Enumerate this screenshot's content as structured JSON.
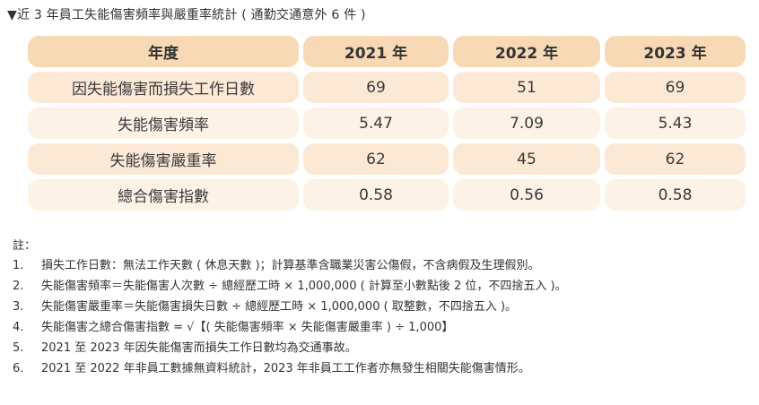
{
  "caption": "▼近 3 年員工失能傷害頻率與嚴重率統計 ( 通勤交通意外 6 件 )",
  "table": {
    "headers": [
      "年度",
      "2021 年",
      "2022 年",
      "2023 年"
    ],
    "rows": [
      [
        "因失能傷害而損失工作日數",
        "69",
        "51",
        "69"
      ],
      [
        "失能傷害頻率",
        "5.47",
        "7.09",
        "5.43"
      ],
      [
        "失能傷害嚴重率",
        "62",
        "45",
        "62"
      ],
      [
        "總合傷害指數",
        "0.58",
        "0.56",
        "0.58"
      ]
    ]
  },
  "notes": {
    "title": "註：",
    "items": [
      {
        "num": "1.",
        "text": "損失工作日數：無法工作天數 ( 休息天數 )；計算基準含職業災害公傷假，不含病假及生理假別。"
      },
      {
        "num": "2.",
        "text": "失能傷害頻率＝失能傷害人次數 ÷ 總經歷工時 × 1,000,000 ( 計算至小數點後 2 位，不四捨五入 )。"
      },
      {
        "num": "3.",
        "text": "失能傷害嚴重率＝失能傷害損失日數 ÷ 總經歷工時 × 1,000,000 ( 取整數，不四捨五入 )。"
      },
      {
        "num": "4.",
        "text": "失能傷害之總合傷害指數 = √【( 失能傷害頻率 × 失能傷害嚴重率 ) ÷ 1,000】"
      },
      {
        "num": "5.",
        "text": "2021 至 2023 年因失能傷害而損失工作日數均為交通事故。"
      },
      {
        "num": "6.",
        "text": "2021 至 2022 年非員工數據無資料統計，2023 年非員工工作者亦無發生相關失能傷害情形。"
      }
    ]
  }
}
